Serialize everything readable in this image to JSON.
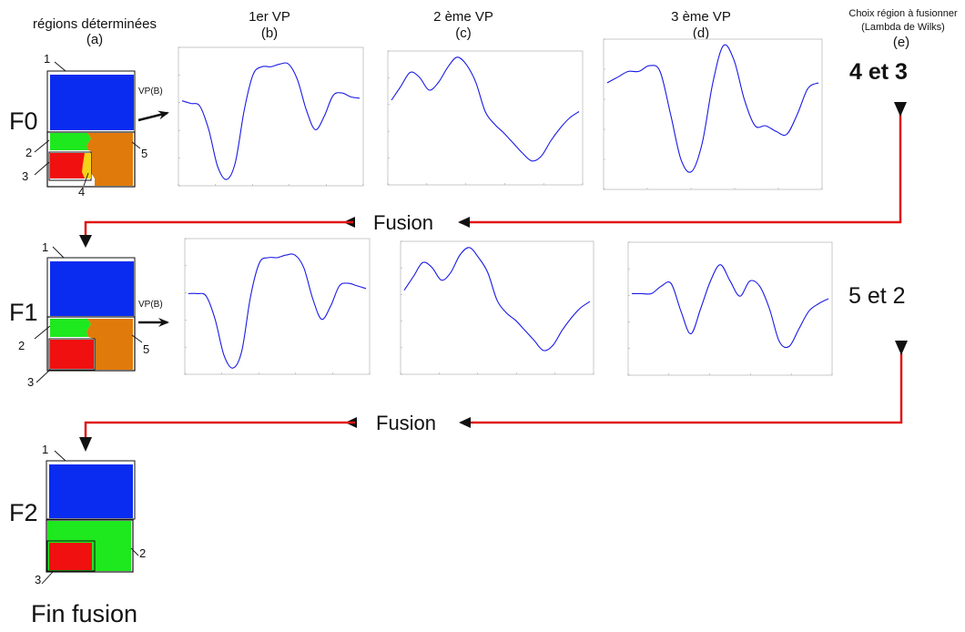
{
  "columns": {
    "a_title": "régions déterminées",
    "a_letter": "(a)",
    "b_title": "1er VP",
    "b_letter": "(b)",
    "c_title": "2 ème VP",
    "c_letter": "(c)",
    "d_title": "3 ème VP",
    "d_letter": "(d)",
    "e_title_1": "Choix région à fusionner",
    "e_title_2": "(Lambda de Wilks)",
    "e_letter": "(e)"
  },
  "rows": [
    {
      "stage": "F0",
      "vp_label": "VP(B)",
      "region_numbers": [
        "1",
        "2",
        "3",
        "4",
        "5"
      ],
      "choice": "4 et 3"
    },
    {
      "stage": "F1",
      "vp_label": "VP(B)",
      "region_numbers": [
        "1",
        "2",
        "3",
        "5"
      ],
      "choice": "5 et 2"
    },
    {
      "stage": "F2",
      "region_numbers": [
        "1",
        "2",
        "3"
      ]
    }
  ],
  "fusion_label_1": "Fusion",
  "fusion_label_2": "Fusion",
  "end_label": "Fin fusion",
  "colors": {
    "region_blue": "#0a2cf0",
    "region_green": "#1ee81e",
    "region_red": "#f01010",
    "region_orange": "#e07a0a",
    "region_yellow": "#f5d21a",
    "curve": "#1a1ae6",
    "flow_arrow": "#e01515"
  },
  "plots": [
    {
      "id": "f0-vp1",
      "points": [
        0.62,
        0.6,
        0.58,
        0.4,
        0.12,
        0.02,
        0.15,
        0.55,
        0.82,
        0.88,
        0.88,
        0.9,
        0.9,
        0.78,
        0.55,
        0.4,
        0.5,
        0.66,
        0.68,
        0.65,
        0.64
      ]
    },
    {
      "id": "f0-vp2",
      "points": [
        0.64,
        0.75,
        0.86,
        0.82,
        0.72,
        0.78,
        0.9,
        0.98,
        0.92,
        0.78,
        0.55,
        0.45,
        0.38,
        0.3,
        0.22,
        0.16,
        0.2,
        0.32,
        0.42,
        0.5,
        0.55
      ]
    },
    {
      "id": "f0-vp3",
      "points": [
        0.72,
        0.76,
        0.8,
        0.8,
        0.84,
        0.8,
        0.5,
        0.18,
        0.1,
        0.3,
        0.72,
        0.98,
        0.88,
        0.6,
        0.42,
        0.42,
        0.38,
        0.36,
        0.5,
        0.68,
        0.72
      ]
    },
    {
      "id": "f1-vp1",
      "points": [
        0.6,
        0.6,
        0.58,
        0.4,
        0.12,
        0.02,
        0.15,
        0.58,
        0.84,
        0.88,
        0.88,
        0.9,
        0.9,
        0.8,
        0.56,
        0.4,
        0.5,
        0.66,
        0.68,
        0.66,
        0.64
      ]
    },
    {
      "id": "f1-vp2",
      "points": [
        0.64,
        0.75,
        0.86,
        0.82,
        0.72,
        0.78,
        0.92,
        0.98,
        0.9,
        0.78,
        0.56,
        0.46,
        0.4,
        0.32,
        0.24,
        0.16,
        0.2,
        0.32,
        0.42,
        0.5,
        0.55
      ]
    },
    {
      "id": "f1-vp3",
      "points": [
        0.62,
        0.62,
        0.62,
        0.68,
        0.7,
        0.48,
        0.3,
        0.5,
        0.72,
        0.85,
        0.72,
        0.6,
        0.72,
        0.68,
        0.5,
        0.24,
        0.2,
        0.34,
        0.48,
        0.54,
        0.58
      ]
    }
  ]
}
